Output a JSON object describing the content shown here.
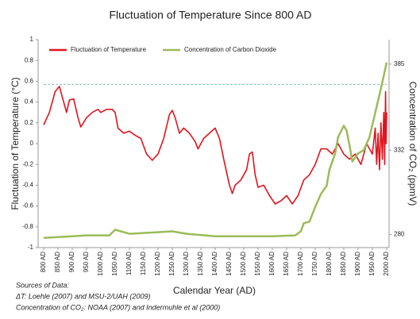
{
  "chart_data": {
    "type": "line",
    "title": "Fluctuation of Temperature Since 800 AD",
    "xlabel": "Calendar Year (AD)",
    "ylabel": "Fluctuation of Temperature (°C)",
    "y2label": "Concentration of CO₂ (ppmV)",
    "xlim": [
      800,
      2000
    ],
    "xticks": [
      {
        "value": 800,
        "label": "800 AD"
      },
      {
        "value": 850,
        "label": "850 AD"
      },
      {
        "value": 900,
        "label": "900 AD"
      },
      {
        "value": 950,
        "label": "950 AD"
      },
      {
        "value": 1000,
        "label": "1000 AD"
      },
      {
        "value": 1050,
        "label": "1050 AD"
      },
      {
        "value": 1100,
        "label": "1100 AD"
      },
      {
        "value": 1150,
        "label": "1150 AD"
      },
      {
        "value": 1200,
        "label": "1200 AD"
      },
      {
        "value": 1250,
        "label": "1250 AD"
      },
      {
        "value": 1300,
        "label": "1300 AD"
      },
      {
        "value": 1350,
        "label": "1350 AD"
      },
      {
        "value": 1400,
        "label": "1400 AD"
      },
      {
        "value": 1450,
        "label": "1450 AD"
      },
      {
        "value": 1500,
        "label": "1500 AD"
      },
      {
        "value": 1550,
        "label": "1550 AD"
      },
      {
        "value": 1600,
        "label": "1600 AD"
      },
      {
        "value": 1650,
        "label": "1650 AD"
      },
      {
        "value": 1700,
        "label": "1700 AD"
      },
      {
        "value": 1750,
        "label": "1750 AD"
      },
      {
        "value": 1800,
        "label": "1800 AD"
      },
      {
        "value": 1850,
        "label": "1850 AD"
      },
      {
        "value": 1900,
        "label": "1900 AD"
      },
      {
        "value": 1950,
        "label": "1950 AD"
      },
      {
        "value": 2000,
        "label": "2000 AD"
      }
    ],
    "ylim": [
      -1,
      1
    ],
    "yticks": [
      -1,
      -0.8,
      -0.6,
      -0.4,
      -0.2,
      0,
      0.2,
      0.4,
      0.6,
      0.8,
      1
    ],
    "y2lim": [
      272,
      400
    ],
    "y2ticks": [
      280,
      332,
      385
    ],
    "hline": 0.57,
    "hline_color": "#7fbfb0",
    "series": [
      {
        "name": "Fluctuation of Temperature",
        "color": "#e0141e",
        "x": [
          800,
          820,
          840,
          855,
          870,
          880,
          890,
          905,
          920,
          930,
          950,
          970,
          990,
          1000,
          1020,
          1040,
          1050,
          1060,
          1080,
          1100,
          1120,
          1140,
          1160,
          1180,
          1200,
          1220,
          1240,
          1250,
          1260,
          1275,
          1290,
          1310,
          1330,
          1340,
          1360,
          1380,
          1400,
          1415,
          1430,
          1450,
          1460,
          1470,
          1490,
          1510,
          1520,
          1530,
          1540,
          1550,
          1570,
          1590,
          1610,
          1630,
          1650,
          1670,
          1690,
          1710,
          1730,
          1750,
          1770,
          1790,
          1810,
          1830,
          1850,
          1870,
          1890,
          1910,
          1930,
          1950,
          1960,
          1965,
          1970,
          1975,
          1980,
          1985,
          1990,
          1993,
          1996,
          1998,
          2000
        ],
        "values": [
          0.18,
          0.3,
          0.5,
          0.55,
          0.4,
          0.3,
          0.42,
          0.43,
          0.25,
          0.16,
          0.25,
          0.3,
          0.33,
          0.3,
          0.33,
          0.33,
          0.3,
          0.15,
          0.1,
          0.12,
          0.08,
          0.05,
          -0.1,
          -0.16,
          -0.1,
          0.05,
          0.28,
          0.32,
          0.25,
          0.1,
          0.15,
          0.1,
          0.02,
          -0.05,
          0.05,
          0.1,
          0.15,
          0.05,
          -0.15,
          -0.4,
          -0.48,
          -0.4,
          -0.35,
          -0.25,
          -0.1,
          -0.08,
          -0.3,
          -0.42,
          -0.4,
          -0.5,
          -0.58,
          -0.55,
          -0.5,
          -0.58,
          -0.5,
          -0.35,
          -0.3,
          -0.2,
          -0.05,
          -0.05,
          -0.1,
          0,
          -0.1,
          -0.15,
          -0.1,
          -0.2,
          0,
          -0.1,
          0.15,
          -0.2,
          0.1,
          -0.25,
          0.2,
          -0.15,
          0.3,
          -0.2,
          0.5,
          0,
          0.3
        ]
      },
      {
        "name": "Concentration of Carbon Dioxide",
        "color": "#9bbb59",
        "axis": "y2",
        "x": [
          800,
          900,
          950,
          1030,
          1050,
          1100,
          1200,
          1250,
          1300,
          1400,
          1500,
          1600,
          1680,
          1700,
          1710,
          1730,
          1750,
          1770,
          1790,
          1800,
          1820,
          1830,
          1850,
          1860,
          1870,
          1880,
          1900,
          1920,
          1940,
          1960,
          1980,
          2000
        ],
        "values": [
          278,
          279,
          279.5,
          279.5,
          283,
          280.5,
          281.5,
          282,
          280.5,
          279,
          279,
          279,
          279.5,
          282,
          287,
          288,
          297,
          305,
          310,
          320,
          330,
          340,
          347,
          344,
          335,
          325,
          330,
          332,
          340,
          355,
          370,
          386
        ]
      }
    ],
    "sources": [
      "Sources of Data:",
      "ΔT: Loehle (2007) and MSU-2/UAH (2009)",
      "Concentration of CO₂: NOAA (2007) and Indermuhle et al (2000)"
    ]
  }
}
